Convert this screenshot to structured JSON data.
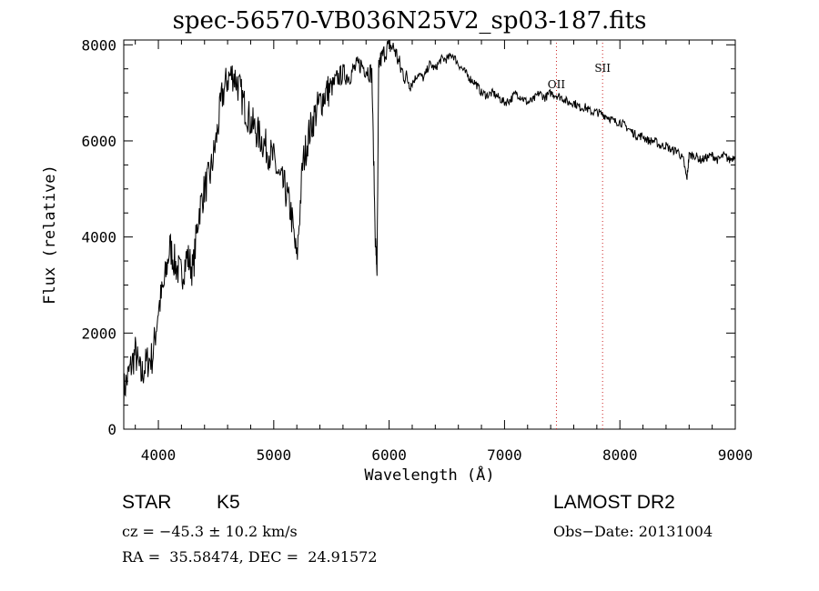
{
  "title": "spec-56570-VB036N25V2_sp03-187.fits",
  "footer": {
    "object_class": "STAR",
    "subclass": "K5",
    "survey": "LAMOST DR2",
    "cz": "cz = −45.3 ± 10.2 km/s",
    "obs_date": "Obs−Date: 20131004",
    "coords": "RA =  35.58474, DEC =  24.91572"
  },
  "chart_data": {
    "type": "line",
    "title": "spec-56570-VB036N25V2_sp03-187.fits",
    "xlabel": "Wavelength (Å)",
    "ylabel": "Flux (relative)",
    "xlim": [
      3700,
      9000
    ],
    "ylim": [
      0,
      8100
    ],
    "x_ticks": [
      4000,
      5000,
      6000,
      7000,
      8000,
      9000
    ],
    "y_ticks": [
      0,
      2000,
      4000,
      6000,
      8000
    ],
    "line_color": "#000000",
    "marker_color": "#cc2222",
    "annotations": [
      {
        "label": "OII",
        "x": 7450
      },
      {
        "label": "SII",
        "x": 7850
      }
    ],
    "series": [
      {
        "x": [
          3700,
          3750,
          3800,
          3850,
          3900,
          3950,
          4000,
          4050,
          4100,
          4150,
          4200,
          4250,
          4300,
          4350,
          4400,
          4450,
          4500,
          4550,
          4600,
          4650,
          4700,
          4750,
          4800,
          4850,
          4900,
          4950,
          5000,
          5050,
          5100,
          5150,
          5200,
          5250,
          5300,
          5350,
          5400,
          5450,
          5500,
          5550,
          5600,
          5650,
          5700,
          5750,
          5800,
          5850,
          5880,
          5895,
          5910,
          5950,
          6000,
          6050,
          6100,
          6150,
          6200,
          6250,
          6300,
          6350,
          6400,
          6450,
          6500,
          6550,
          6600,
          6650,
          6700,
          6750,
          6800,
          6850,
          6900,
          6950,
          7000,
          7050,
          7100,
          7150,
          7200,
          7250,
          7300,
          7350,
          7400,
          7450,
          7500,
          7550,
          7600,
          7650,
          7700,
          7750,
          7800,
          7850,
          7900,
          7950,
          8000,
          8050,
          8100,
          8150,
          8200,
          8250,
          8300,
          8350,
          8400,
          8450,
          8500,
          8550,
          8580,
          8600,
          8650,
          8700,
          8750,
          8800,
          8850,
          8900,
          8950,
          9000
        ],
        "y": [
          800,
          1200,
          1600,
          1100,
          1400,
          1500,
          2500,
          3000,
          3800,
          3400,
          3200,
          3600,
          3300,
          4500,
          5000,
          5300,
          6000,
          6900,
          7300,
          7400,
          7100,
          6700,
          6400,
          6200,
          6000,
          5800,
          5600,
          5200,
          5000,
          4500,
          3500,
          5500,
          6100,
          6500,
          6800,
          7000,
          7100,
          7300,
          7400,
          7350,
          7500,
          7600,
          7500,
          7400,
          4000,
          3300,
          7600,
          7800,
          8000,
          7900,
          7500,
          7300,
          7200,
          7400,
          7300,
          7600,
          7500,
          7700,
          7700,
          7800,
          7600,
          7450,
          7300,
          7200,
          7000,
          6950,
          7000,
          6900,
          6800,
          6850,
          7000,
          6900,
          6800,
          6850,
          7000,
          6900,
          7000,
          6950,
          6900,
          6800,
          6800,
          6700,
          6700,
          6600,
          6600,
          6550,
          6500,
          6400,
          6400,
          6300,
          6200,
          6100,
          6100,
          6000,
          6000,
          5900,
          5900,
          5800,
          5800,
          5600,
          5200,
          5700,
          5700,
          5600,
          5650,
          5700,
          5600,
          5700,
          5600,
          5700
        ]
      }
    ]
  }
}
